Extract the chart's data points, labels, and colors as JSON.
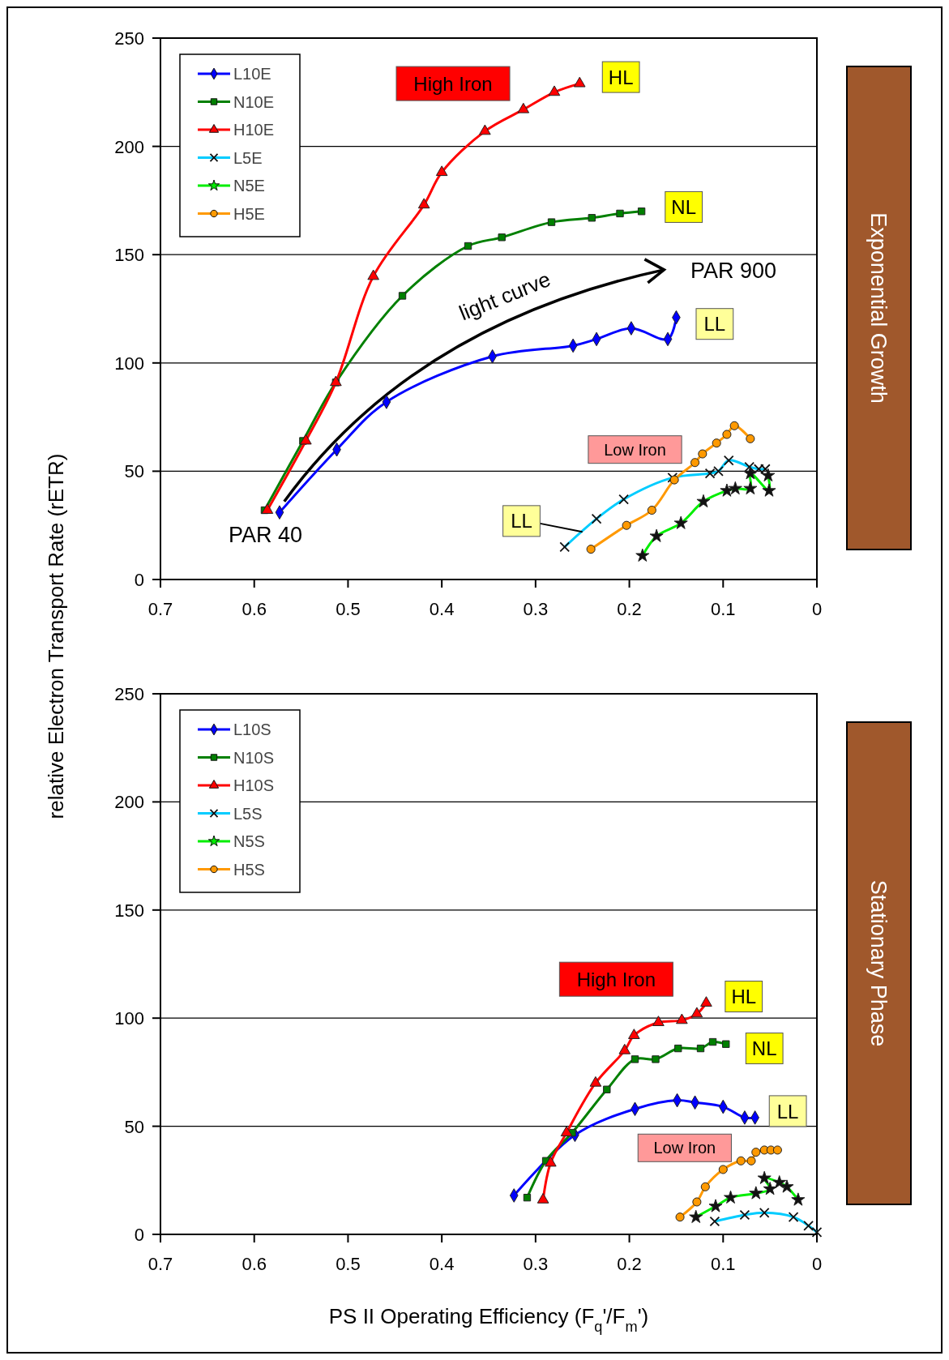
{
  "chart_data": [
    {
      "type": "line",
      "ylabel": "relative Electron Transport Rate (rETR)",
      "xlim": [
        0.7,
        0
      ],
      "xticks": [
        0.7,
        0.6,
        0.5,
        0.4,
        0.3,
        0.2,
        0.1,
        0
      ],
      "ylim": [
        0,
        250
      ],
      "yticks": [
        0,
        50,
        100,
        150,
        200,
        250
      ],
      "grid": "y",
      "legend": "top left",
      "line_style": "solid",
      "series": [
        {
          "name": "L10E",
          "color": "#0000ff",
          "marker": "diamond",
          "x": [
            0.573,
            0.512,
            0.459,
            0.346,
            0.26,
            0.235,
            0.198,
            0.159,
            0.15
          ],
          "values": [
            31,
            60,
            82,
            103,
            108,
            111,
            116,
            111,
            121
          ]
        },
        {
          "name": "N10E",
          "color": "#008000",
          "marker": "square",
          "x": [
            0.589,
            0.548,
            0.513,
            0.442,
            0.372,
            0.336,
            0.283,
            0.24,
            0.21,
            0.187
          ],
          "values": [
            32,
            64,
            91,
            131,
            154,
            158,
            165,
            167,
            169,
            170
          ]
        },
        {
          "name": "H10E",
          "color": "#ff0000",
          "marker": "triangle",
          "x": [
            0.586,
            0.545,
            0.513,
            0.473,
            0.419,
            0.4,
            0.354,
            0.313,
            0.28,
            0.253
          ],
          "values": [
            32,
            64,
            91,
            140,
            173,
            188,
            207,
            217,
            225,
            229
          ]
        },
        {
          "name": "L5E",
          "color": "#00ccff",
          "marker": "cross",
          "x": [
            0.269,
            0.235,
            0.206,
            0.154,
            0.114,
            0.105,
            0.094,
            0.072,
            0.062,
            0.055
          ],
          "values": [
            15,
            28,
            37,
            47,
            49,
            50,
            55,
            52,
            51,
            51
          ]
        },
        {
          "name": "N5E",
          "color": "#00ee00",
          "marker": "star",
          "x": [
            0.186,
            0.171,
            0.145,
            0.121,
            0.096,
            0.087,
            0.071,
            0.071,
            0.051,
            0.052
          ],
          "values": [
            11,
            20,
            26,
            36,
            41,
            42,
            42,
            49,
            41,
            48
          ]
        },
        {
          "name": "H5E",
          "color": "#ff9900",
          "marker": "circle",
          "x": [
            0.241,
            0.203,
            0.176,
            0.152,
            0.13,
            0.122,
            0.107,
            0.096,
            0.088,
            0.071
          ],
          "values": [
            14,
            25,
            32,
            46,
            54,
            58,
            63,
            67,
            71,
            65
          ]
        }
      ],
      "annotations": [
        "High Iron",
        "HL",
        "NL",
        "LL",
        "light curve",
        "PAR 900",
        "PAR 40",
        "Low Iron",
        {
          "text": "LL",
          "x": 0.25,
          "y": 22
        },
        "Exponential Growth"
      ]
    },
    {
      "type": "line",
      "xlabel": "PS II Operating Efficiency (F$_{q}$'/F$_{m}$')",
      "xlim": [
        0.7,
        0
      ],
      "xticks": [
        0.7,
        0.6,
        0.5,
        0.4,
        0.3,
        0.2,
        0.1,
        0
      ],
      "ylim": [
        0,
        250
      ],
      "yticks": [
        0,
        50,
        100,
        150,
        200,
        250
      ],
      "grid": "y",
      "legend": "top left",
      "line_style": "solid",
      "series": [
        {
          "name": "L10S",
          "color": "#0000ff",
          "marker": "diamond",
          "x": [
            0.323,
            0.258,
            0.194,
            0.149,
            0.13,
            0.1,
            0.077,
            0.066
          ],
          "values": [
            18,
            46,
            58,
            62,
            61,
            59,
            54,
            54
          ]
        },
        {
          "name": "N10S",
          "color": "#008000",
          "marker": "square",
          "x": [
            0.309,
            0.289,
            0.261,
            0.224,
            0.194,
            0.172,
            0.148,
            0.124,
            0.111,
            0.097
          ],
          "values": [
            17,
            34,
            47,
            67,
            81,
            81,
            86,
            86,
            89,
            88
          ]
        },
        {
          "name": "H10S",
          "color": "#ff0000",
          "marker": "triangle",
          "x": [
            0.292,
            0.284,
            0.267,
            0.236,
            0.205,
            0.195,
            0.169,
            0.144,
            0.128,
            0.118
          ],
          "values": [
            16,
            33,
            47,
            70,
            85,
            92,
            98,
            99,
            102,
            107
          ]
        },
        {
          "name": "L5S",
          "color": "#00ccff",
          "marker": "cross",
          "x": [
            0.109,
            0.077,
            0.056,
            0.025,
            0.009,
            0
          ],
          "values": [
            6,
            9,
            10,
            8,
            4,
            1
          ]
        },
        {
          "name": "N5S",
          "color": "#00ee00",
          "marker": "star",
          "x": [
            0.129,
            0.108,
            0.092,
            0.065,
            0.05,
            0.056,
            0.04,
            0.032,
            0.02
          ],
          "values": [
            8,
            13,
            17,
            19,
            21,
            26,
            24,
            22,
            16
          ]
        },
        {
          "name": "H5S",
          "color": "#ff9900",
          "marker": "circle",
          "x": [
            0.146,
            0.128,
            0.119,
            0.1,
            0.081,
            0.07,
            0.065,
            0.056,
            0.049,
            0.042
          ],
          "values": [
            8,
            15,
            22,
            30,
            34,
            34,
            38,
            39,
            39,
            39
          ]
        }
      ],
      "annotations": [
        "High Iron",
        "HL",
        "NL",
        "LL",
        "Low Iron",
        "Stationary Phase"
      ]
    }
  ]
}
